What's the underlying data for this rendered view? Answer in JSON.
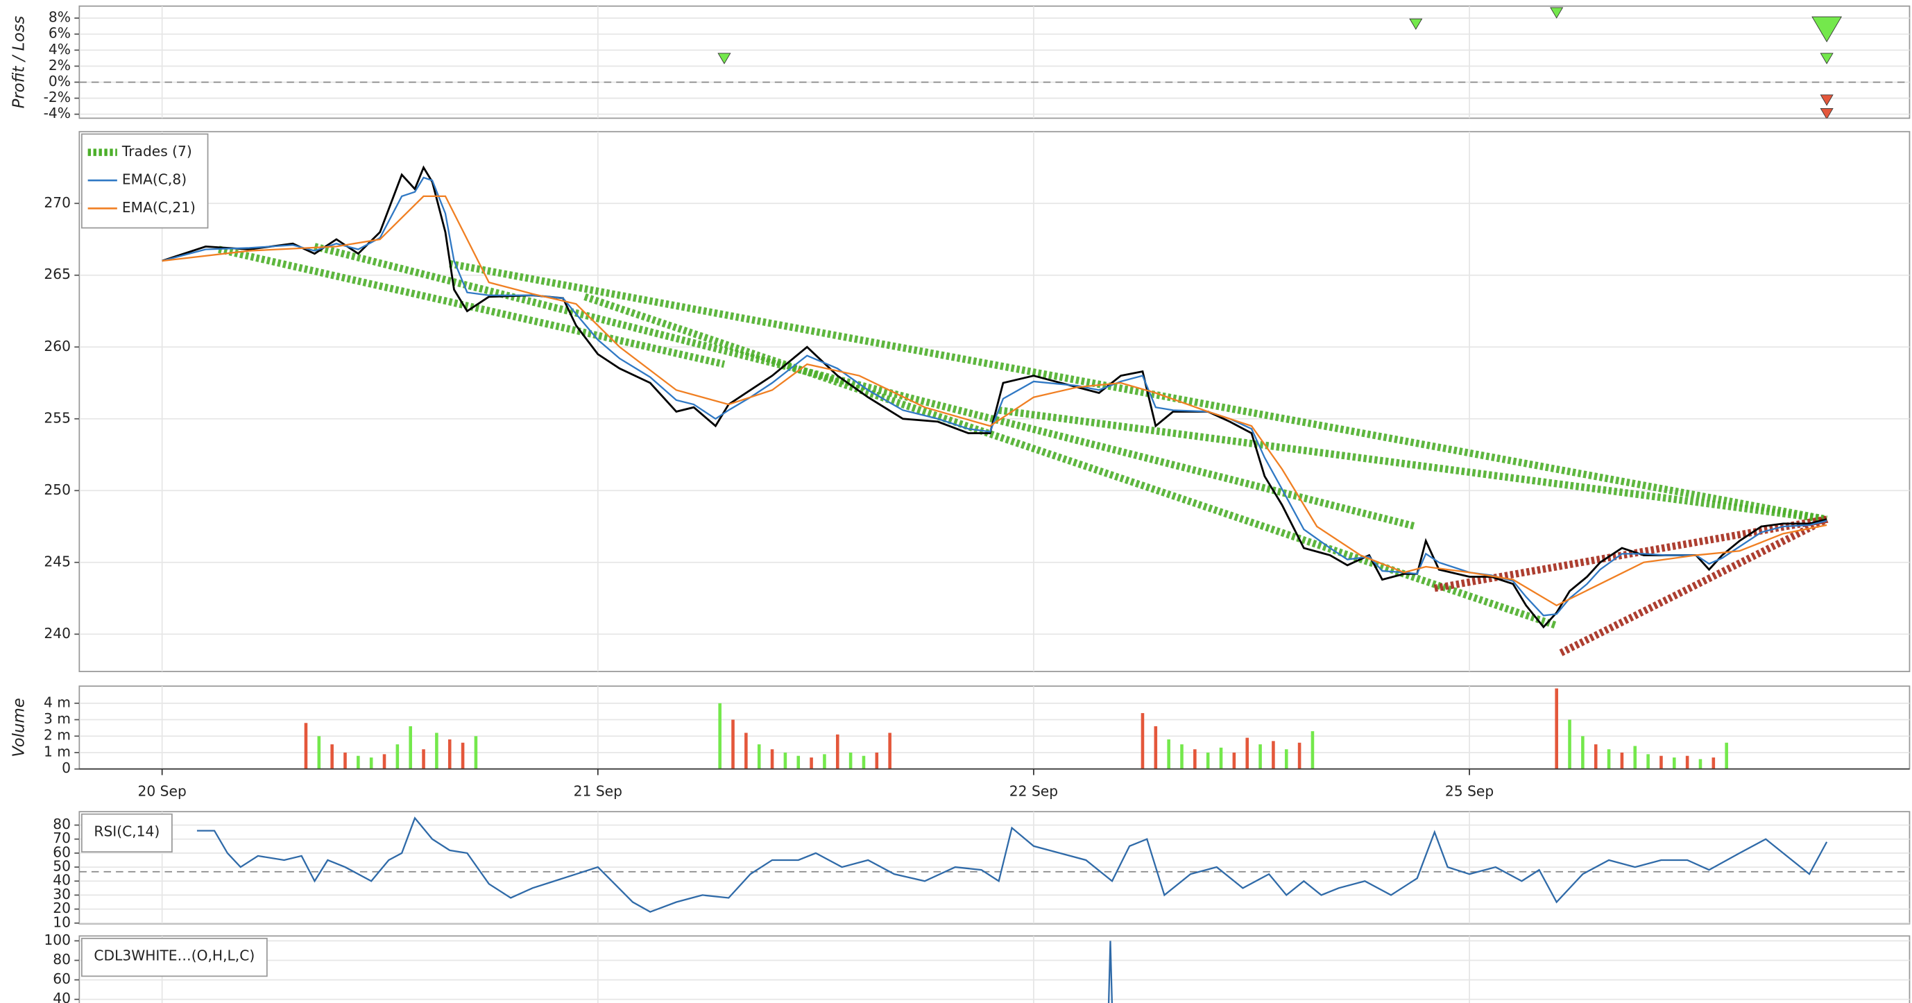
{
  "chart_data": [
    {
      "type": "scatter",
      "ylabel": "Profit / Loss",
      "xlim": [
        -19,
        401
      ],
      "ylim": [
        -4.5,
        9.5
      ],
      "yticks": [
        {
          "value": -4,
          "label": "-4%"
        },
        {
          "value": -2,
          "label": "-2%"
        },
        {
          "value": 0,
          "label": "0%"
        },
        {
          "value": 2,
          "label": "2%"
        },
        {
          "value": 4,
          "label": "4%"
        },
        {
          "value": 6,
          "label": "6%"
        },
        {
          "value": 8,
          "label": "8%"
        }
      ],
      "reference_line": 0,
      "x": [
        129,
        287.7,
        320,
        382,
        382,
        382,
        382
      ],
      "values": [
        3,
        7.3,
        8.7,
        6.7,
        3,
        -2.2,
        -3.9
      ],
      "sizes": [
        1,
        1,
        1,
        2.4,
        1,
        1,
        1
      ],
      "colors": [
        "#74e84c",
        "#74e84c",
        "#74e84c",
        "#74e84c",
        "#74e84c",
        "#e4573b",
        "#e4573b"
      ],
      "grid": true
    },
    {
      "type": "line",
      "xlim": [
        -19,
        401
      ],
      "ylim": [
        237.4,
        275
      ],
      "yticks": [
        240,
        245,
        250,
        255,
        260,
        265,
        270
      ],
      "grid": true,
      "legend": true,
      "trades": {
        "name": "Trades (7)",
        "entry_x": [
          13,
          35,
          97,
          66,
          192,
          292,
          321
        ],
        "entry_price": [
          266.8,
          267,
          263.5,
          265.8,
          255.6,
          243.2,
          238.7
        ],
        "exit_x": [
          129,
          287.7,
          320,
          382,
          382,
          382,
          382
        ],
        "exit_price": [
          258.8,
          247.5,
          240.6,
          248,
          248,
          248,
          248
        ],
        "colors": [
          "#4caf2a",
          "#4caf2a",
          "#4caf2a",
          "#4caf2a",
          "#4caf2a",
          "#a52a1a",
          "#a52a1a"
        ]
      },
      "series": [
        {
          "color": "#000000",
          "x": [
            0,
            10,
            20,
            30,
            35,
            40,
            45,
            50,
            55,
            58,
            60,
            62,
            65,
            67,
            70,
            75,
            85,
            92,
            95,
            100,
            105,
            112,
            118,
            122,
            127,
            130,
            135,
            140,
            148,
            155,
            162,
            170,
            178,
            185,
            190,
            193,
            200,
            210,
            215,
            220,
            225,
            228,
            232,
            240,
            245,
            250,
            253,
            257,
            262,
            268,
            272,
            277,
            280,
            285,
            288,
            290,
            293,
            300,
            305,
            310,
            313,
            317,
            320,
            323,
            327,
            330,
            335,
            340,
            345,
            352,
            355,
            358,
            362,
            367,
            372,
            378,
            382
          ],
          "values": [
            266,
            267,
            266.8,
            267.2,
            266.5,
            267.5,
            266.5,
            268,
            272,
            271,
            272.5,
            271.5,
            268,
            264,
            262.5,
            263.5,
            263.6,
            263.4,
            261.5,
            259.5,
            258.5,
            257.5,
            255.5,
            255.8,
            254.5,
            256,
            257,
            258,
            260,
            258,
            256.5,
            255,
            254.8,
            254,
            254,
            257.5,
            258,
            257.2,
            256.8,
            258,
            258.3,
            254.5,
            255.5,
            255.5,
            254.8,
            254,
            251,
            249,
            246,
            245.5,
            244.8,
            245.5,
            243.8,
            244.2,
            244.2,
            246.5,
            244.5,
            244,
            244,
            243.5,
            242,
            240.5,
            241.5,
            243,
            244,
            245,
            246,
            245.5,
            245.5,
            245.5,
            244.5,
            245.5,
            246.5,
            247.5,
            247.7,
            247.7,
            248
          ]
        },
        {
          "name": "EMA(C,8)",
          "color": "#2f78c4",
          "x": [
            0,
            10,
            20,
            30,
            35,
            40,
            45,
            50,
            55,
            58,
            60,
            62,
            65,
            67,
            70,
            75,
            85,
            92,
            95,
            100,
            105,
            112,
            118,
            122,
            127,
            130,
            135,
            140,
            148,
            155,
            162,
            170,
            178,
            185,
            190,
            193,
            200,
            210,
            215,
            220,
            225,
            228,
            232,
            240,
            245,
            250,
            253,
            257,
            262,
            268,
            272,
            277,
            280,
            285,
            288,
            290,
            293,
            300,
            305,
            310,
            313,
            317,
            320,
            323,
            327,
            330,
            335,
            340,
            345,
            352,
            355,
            358,
            362,
            367,
            372,
            378,
            382
          ],
          "values": [
            266,
            266.8,
            266.9,
            267.1,
            266.7,
            267.2,
            266.8,
            267.6,
            270.5,
            270.8,
            271.8,
            271.6,
            269.3,
            266,
            263.8,
            263.6,
            263.6,
            263.4,
            262.3,
            260.5,
            259.2,
            257.9,
            256.3,
            256,
            255,
            255.6,
            256.5,
            257.5,
            259.4,
            258.5,
            257,
            255.6,
            255,
            254.3,
            254.1,
            256.4,
            257.6,
            257.3,
            257,
            257.6,
            258,
            255.8,
            255.6,
            255.5,
            255,
            254.3,
            252.3,
            250.1,
            247.3,
            246,
            245.2,
            245.4,
            244.4,
            244.3,
            244.2,
            245.6,
            245,
            244.3,
            244.1,
            243.7,
            242.6,
            241.3,
            241.4,
            242.5,
            243.5,
            244.5,
            245.6,
            245.6,
            245.5,
            245.5,
            244.9,
            245.3,
            246.1,
            247.1,
            247.5,
            247.6,
            247.9
          ]
        },
        {
          "name": "EMA(C,21)",
          "color": "#f07f22",
          "x": [
            0,
            20,
            40,
            50,
            55,
            60,
            65,
            70,
            75,
            85,
            95,
            105,
            118,
            130,
            140,
            148,
            160,
            175,
            190,
            200,
            210,
            220,
            228,
            240,
            250,
            257,
            265,
            275,
            285,
            290,
            300,
            310,
            320,
            330,
            340,
            352,
            362,
            372,
            382
          ],
          "values": [
            266,
            266.7,
            267,
            267.5,
            269,
            270.5,
            270.5,
            267.5,
            264.5,
            263.7,
            263,
            260,
            257,
            256,
            257,
            258.8,
            258,
            255.8,
            254.5,
            256.5,
            257.2,
            257.5,
            256.8,
            255.5,
            254.5,
            251.5,
            247.5,
            245.5,
            244.3,
            244.7,
            244.3,
            243.8,
            242,
            243.5,
            245,
            245.5,
            245.8,
            247,
            247.6
          ]
        }
      ]
    },
    {
      "type": "bar",
      "ylabel": "Volume",
      "xlim": [
        -19,
        401
      ],
      "xticks": [
        {
          "value": 0,
          "label": "20 Sep"
        },
        {
          "value": 100,
          "label": "21 Sep"
        },
        {
          "value": 200,
          "label": "22 Sep"
        },
        {
          "value": 300,
          "label": "25 Sep"
        }
      ],
      "ylim": [
        0,
        5040000
      ],
      "yticks": [
        0,
        {
          "value": 1000000,
          "label": "1 m"
        },
        {
          "value": 2000000,
          "label": "2 m"
        },
        {
          "value": 3000000,
          "label": "3 m"
        },
        {
          "value": 4000000,
          "label": "4 m"
        }
      ],
      "grid": true,
      "x": [
        33,
        36,
        39,
        42,
        45,
        48,
        51,
        54,
        57,
        60,
        63,
        66,
        69,
        72,
        128,
        131,
        134,
        137,
        140,
        143,
        146,
        149,
        152,
        155,
        158,
        161,
        164,
        167,
        225,
        228,
        231,
        234,
        237,
        240,
        243,
        246,
        249,
        252,
        255,
        258,
        261,
        264,
        320,
        323,
        326,
        329,
        332,
        335,
        338,
        341,
        344,
        347,
        350,
        353,
        356,
        359
      ],
      "values": [
        2800000,
        2000000,
        1500000,
        1000000,
        800000,
        700000,
        900000,
        1500000,
        2600000,
        1200000,
        2200000,
        1800000,
        1600000,
        2000000,
        4000000,
        3000000,
        2200000,
        1500000,
        1200000,
        1000000,
        800000,
        700000,
        900000,
        2100000,
        1000000,
        800000,
        1000000,
        2200000,
        3400000,
        2600000,
        1800000,
        1500000,
        1200000,
        1000000,
        1300000,
        1000000,
        1900000,
        1500000,
        1700000,
        1200000,
        1600000,
        2300000,
        4900000,
        3000000,
        2000000,
        1500000,
        1200000,
        1000000,
        1400000,
        900000,
        800000,
        700000,
        800000,
        600000,
        700000,
        1600000
      ],
      "colors": [
        "#e4573b",
        "#74e84c",
        "#e4573b",
        "#e4573b",
        "#74e84c",
        "#74e84c",
        "#e4573b",
        "#74e84c",
        "#74e84c",
        "#e4573b",
        "#74e84c",
        "#e4573b",
        "#e4573b",
        "#74e84c",
        "#74e84c",
        "#e4573b",
        "#e4573b",
        "#74e84c",
        "#e4573b",
        "#74e84c",
        "#74e84c",
        "#e4573b",
        "#74e84c",
        "#e4573b",
        "#74e84c",
        "#74e84c",
        "#e4573b",
        "#e4573b",
        "#e4573b",
        "#e4573b",
        "#74e84c",
        "#74e84c",
        "#e4573b",
        "#74e84c",
        "#74e84c",
        "#e4573b",
        "#e4573b",
        "#74e84c",
        "#e4573b",
        "#74e84c",
        "#e4573b",
        "#74e84c",
        "#e4573b",
        "#74e84c",
        "#74e84c",
        "#e4573b",
        "#74e84c",
        "#e4573b",
        "#74e84c",
        "#74e84c",
        "#e4573b",
        "#74e84c",
        "#e4573b",
        "#74e84c",
        "#e4573b",
        "#74e84c"
      ]
    },
    {
      "type": "line",
      "xlim": [
        -19,
        401
      ],
      "ylim": [
        9.5,
        89.6
      ],
      "yticks": [
        10,
        20,
        30,
        40,
        50,
        60,
        70,
        80
      ],
      "reference_line": 46.7,
      "grid": true,
      "legend": true,
      "series": [
        {
          "name": "RSI(C,14)",
          "color": "#2f6aa8",
          "x": [
            8,
            12,
            15,
            18,
            22,
            28,
            32,
            35,
            38,
            42,
            48,
            52,
            55,
            58,
            62,
            66,
            70,
            75,
            80,
            85,
            90,
            95,
            100,
            108,
            112,
            118,
            124,
            130,
            135,
            140,
            146,
            150,
            156,
            162,
            168,
            175,
            182,
            188,
            192,
            195,
            200,
            206,
            212,
            218,
            222,
            226,
            230,
            236,
            242,
            248,
            254,
            258,
            262,
            266,
            270,
            276,
            282,
            288,
            292,
            295,
            300,
            306,
            312,
            316,
            320,
            326,
            332,
            338,
            344,
            350,
            355,
            362,
            368,
            374,
            378,
            382
          ],
          "values": [
            76,
            76,
            60,
            50,
            58,
            55,
            58,
            40,
            55,
            50,
            40,
            55,
            60,
            85,
            70,
            62,
            60,
            38,
            28,
            35,
            40,
            45,
            50,
            25,
            18,
            25,
            30,
            28,
            45,
            55,
            55,
            60,
            50,
            55,
            45,
            40,
            50,
            48,
            40,
            78,
            65,
            60,
            55,
            40,
            65,
            70,
            30,
            45,
            50,
            35,
            45,
            30,
            40,
            30,
            35,
            40,
            30,
            42,
            75,
            50,
            45,
            50,
            40,
            48,
            25,
            45,
            55,
            50,
            55,
            55,
            48,
            60,
            70,
            55,
            45,
            68
          ]
        }
      ]
    },
    {
      "type": "line",
      "xlim": [
        -19,
        401
      ],
      "ylim": [
        -10,
        105
      ],
      "yticks": [
        40,
        60,
        80,
        100
      ],
      "grid": true,
      "legend": true,
      "series": [
        {
          "name": "CDL3WHITE…(O,H,L,C)",
          "color": "#2f6aa8",
          "x": [
            8,
            217,
            217.6,
            218.2,
            382
          ],
          "values": [
            0,
            0,
            100,
            0,
            0
          ]
        }
      ]
    }
  ]
}
